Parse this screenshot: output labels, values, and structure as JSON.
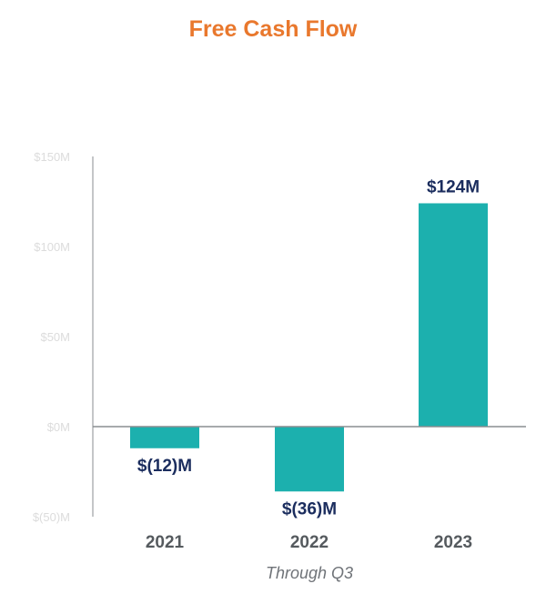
{
  "chart_data": {
    "type": "bar",
    "title": "Free Cash Flow",
    "categories": [
      "2021",
      "2022",
      "2023"
    ],
    "values": [
      -12,
      -36,
      124
    ],
    "data_labels": [
      "$(12)M",
      "$(36)M",
      "$124M"
    ],
    "ylim": [
      -50,
      150
    ],
    "yticks": [
      150,
      100,
      50,
      0,
      -50
    ],
    "ytick_labels": [
      "$150M",
      "$100M",
      "$50M",
      "$0M",
      "$(50)M"
    ],
    "xlabel": "",
    "ylabel": "",
    "unit": "$M",
    "footnote": "Through Q3",
    "colors": {
      "bar": "#1cb0ae",
      "title": "#e9782d",
      "data_label": "#1b2d5e",
      "category_label": "#555a5e",
      "tick_label": "#dcdcdc",
      "axis": "#8a8d90"
    }
  }
}
